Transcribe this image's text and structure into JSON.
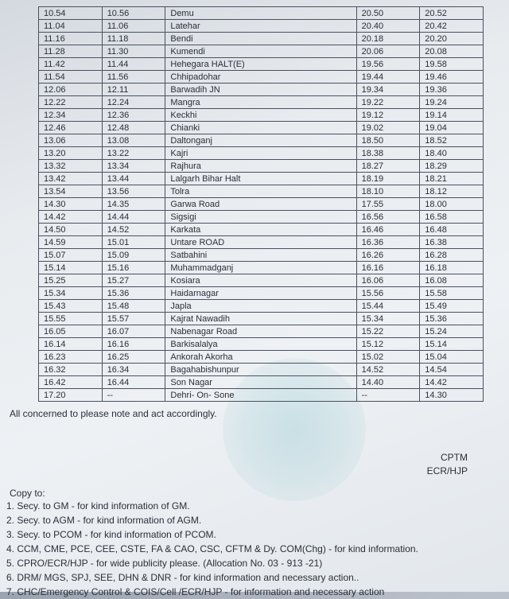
{
  "table": {
    "rows": [
      {
        "t1": "10.54",
        "t2": "10.56",
        "name": "Demu",
        "t3": "20.50",
        "t4": "20.52"
      },
      {
        "t1": "11.04",
        "t2": "11.06",
        "name": "Latehar",
        "t3": "20.40",
        "t4": "20.42"
      },
      {
        "t1": "11.16",
        "t2": "11.18",
        "name": "Bendi",
        "t3": "20.18",
        "t4": "20.20"
      },
      {
        "t1": "11.28",
        "t2": "11.30",
        "name": "Kumendi",
        "t3": "20.06",
        "t4": "20.08"
      },
      {
        "t1": "11.42",
        "t2": "11.44",
        "name": "Hehegara HALT(E)",
        "t3": "19.56",
        "t4": "19.58"
      },
      {
        "t1": "11.54",
        "t2": "11.56",
        "name": "Chhipadohar",
        "t3": "19.44",
        "t4": "19.46"
      },
      {
        "t1": "12.06",
        "t2": "12.11",
        "name": "Barwadih JN",
        "t3": "19.34",
        "t4": "19.36"
      },
      {
        "t1": "12.22",
        "t2": "12.24",
        "name": "Mangra",
        "t3": "19.22",
        "t4": "19.24"
      },
      {
        "t1": "12.34",
        "t2": "12.36",
        "name": "Keckhi",
        "t3": "19.12",
        "t4": "19.14"
      },
      {
        "t1": "12.46",
        "t2": "12.48",
        "name": "Chianki",
        "t3": "19.02",
        "t4": "19.04"
      },
      {
        "t1": "13.06",
        "t2": "13.08",
        "name": "Daltonganj",
        "t3": "18.50",
        "t4": "18.52"
      },
      {
        "t1": "13.20",
        "t2": "13.22",
        "name": "Kajri",
        "t3": "18.38",
        "t4": "18.40"
      },
      {
        "t1": "13.32",
        "t2": "13.34",
        "name": "Rajhura",
        "t3": "18.27",
        "t4": "18.29"
      },
      {
        "t1": "13.42",
        "t2": "13.44",
        "name": "Lalgarh Bihar Halt",
        "t3": "18.19",
        "t4": "18.21"
      },
      {
        "t1": "13.54",
        "t2": "13.56",
        "name": "Tolra",
        "t3": "18.10",
        "t4": "18.12"
      },
      {
        "t1": "14.30",
        "t2": "14.35",
        "name": "Garwa Road",
        "t3": "17.55",
        "t4": "18.00"
      },
      {
        "t1": "14.42",
        "t2": "14.44",
        "name": "Sigsigi",
        "t3": "16.56",
        "t4": "16.58"
      },
      {
        "t1": "14.50",
        "t2": "14.52",
        "name": "Karkata",
        "t3": "16.46",
        "t4": "16.48"
      },
      {
        "t1": "14.59",
        "t2": "15.01",
        "name": "Untare ROAD",
        "t3": "16.36",
        "t4": "16.38"
      },
      {
        "t1": "15.07",
        "t2": "15.09",
        "name": "Satbahini",
        "t3": "16.26",
        "t4": "16.28"
      },
      {
        "t1": "15.14",
        "t2": "15.16",
        "name": "Muhammadganj",
        "t3": "16.16",
        "t4": "16.18"
      },
      {
        "t1": "15.25",
        "t2": "15.27",
        "name": "Kosiara",
        "t3": "16.06",
        "t4": "16.08"
      },
      {
        "t1": "15.34",
        "t2": "15.36",
        "name": "Haidarnagar",
        "t3": "15.56",
        "t4": "15.58"
      },
      {
        "t1": "15.43",
        "t2": "15.48",
        "name": "Japla",
        "t3": "15.44",
        "t4": "15.49"
      },
      {
        "t1": "15.55",
        "t2": "15.57",
        "name": "Kajrat Nawadih",
        "t3": "15.34",
        "t4": "15.36"
      },
      {
        "t1": "16.05",
        "t2": "16.07",
        "name": "Nabenagar Road",
        "t3": "15.22",
        "t4": "15.24"
      },
      {
        "t1": "16.14",
        "t2": "16.16",
        "name": "Barkisalalya",
        "t3": "15.12",
        "t4": "15.14"
      },
      {
        "t1": "16.23",
        "t2": "16.25",
        "name": "Ankorah Akorha",
        "t3": "15.02",
        "t4": "15.04"
      },
      {
        "t1": "16.32",
        "t2": "16.34",
        "name": "Bagahabishunpur",
        "t3": "14.52",
        "t4": "14.54"
      },
      {
        "t1": "16.42",
        "t2": "16.44",
        "name": "Son Nagar",
        "t3": "14.40",
        "t4": "14.42"
      },
      {
        "t1": "17.20",
        "t2": "--",
        "name": "Dehri- On- Sone",
        "t3": "--",
        "t4": "14.30"
      }
    ]
  },
  "note": "All concerned to please note and act accordingly.",
  "signature": {
    "line1": "CPTM",
    "line2": "ECR/HJP"
  },
  "copyHeader": "Copy to:",
  "copyList": [
    "1.  Secy. to   GM - for kind information of  GM.",
    "2.  Secy. to AGM - for kind information of AGM.",
    "3.  Secy. to PCOM - for kind information of PCOM.",
    "4.  CCM, CME, PCE, CEE, CSTE, FA & CAO, CSC, CFTM & Dy. COM(Chg) - for kind information.",
    "5.  CPRO/ECR/HJP - for wide publicity please. (Allocation No. 03 - 913 -21)",
    "6.  DRM/ MGS, SPJ, SEE, DHN & DNR - for kind information and necessary action..",
    "7.  CHC/Emergency Control & COIS/Cell /ECR/HJP - for information and necessary action"
  ]
}
